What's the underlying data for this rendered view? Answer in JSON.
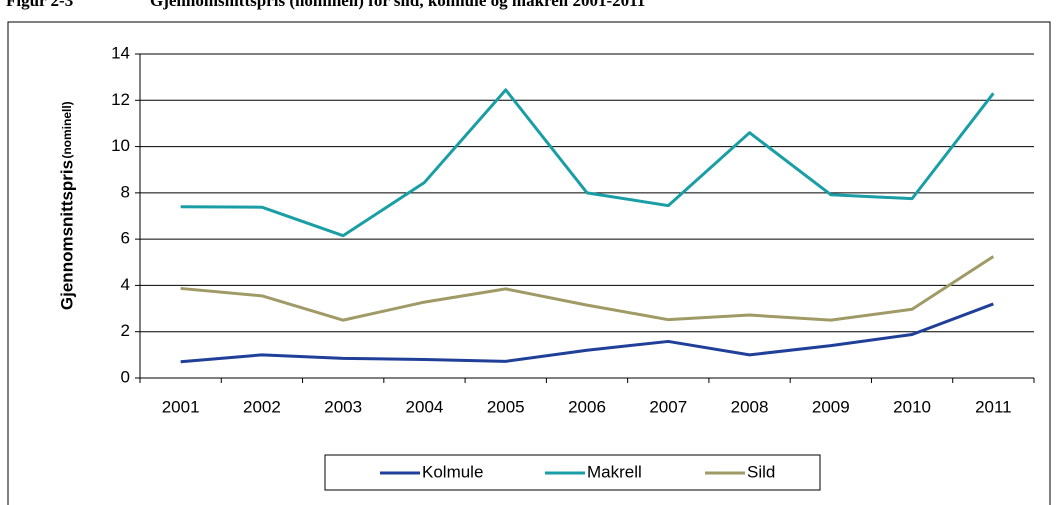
{
  "chart_data": {
    "type": "line",
    "title": "Figur 2-3",
    "subtitle": "Gjennomsnittspris (nominell) for sild, kolmule og makrell 2001-2011",
    "y_label": "Gjennomsnittspris",
    "y_label_note": "(nominell)",
    "categories": [
      "2001",
      "2002",
      "2003",
      "2004",
      "2005",
      "2006",
      "2007",
      "2008",
      "2009",
      "2010",
      "2011"
    ],
    "series": [
      {
        "name": "Kolmule",
        "color": "#1f3f99",
        "values": [
          0.7,
          1.0,
          0.85,
          0.8,
          0.72,
          1.2,
          1.58,
          1.0,
          1.4,
          1.88,
          3.2
        ]
      },
      {
        "name": "Makrell",
        "color": "#1a9ea6",
        "values": [
          7.4,
          7.38,
          6.15,
          8.45,
          12.45,
          8.0,
          7.45,
          10.6,
          7.92,
          7.75,
          12.3
        ]
      },
      {
        "name": "Sild",
        "color": "#a09a66",
        "values": [
          3.87,
          3.55,
          2.5,
          3.28,
          3.85,
          3.15,
          2.52,
          2.72,
          2.5,
          2.97,
          5.25
        ]
      }
    ],
    "ylim": [
      0,
      14
    ],
    "yticks": [
      0,
      2,
      4,
      6,
      8,
      10,
      12,
      14
    ],
    "grid": true,
    "legend": "bottom"
  }
}
